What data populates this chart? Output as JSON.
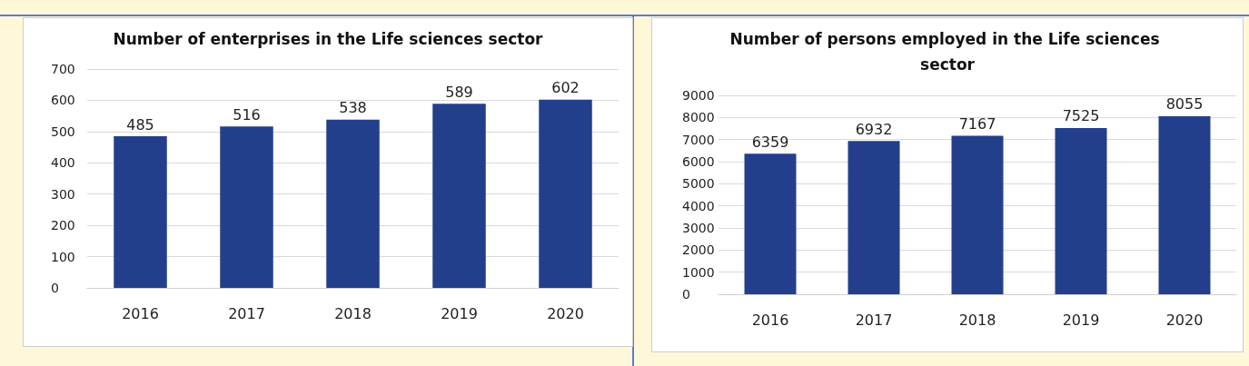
{
  "chart_data": [
    {
      "type": "bar",
      "title": "Number of enterprises in the Life sciences sector",
      "categories": [
        "2016",
        "2017",
        "2018",
        "2019",
        "2020"
      ],
      "values": [
        485,
        516,
        538,
        589,
        602
      ],
      "color": "#233f8c",
      "ylim": [
        0,
        700
      ],
      "yticks": [
        0,
        100,
        200,
        300,
        400,
        500,
        600,
        700
      ],
      "grid": "y",
      "data_labels": true
    },
    {
      "type": "bar",
      "title": "Number of persons employed in the Life sciences sector",
      "categories": [
        "2016",
        "2017",
        "2018",
        "2019",
        "2020"
      ],
      "values": [
        6359,
        6932,
        7167,
        7525,
        8055
      ],
      "color": "#233f8c",
      "ylim": [
        0,
        9000
      ],
      "yticks": [
        0,
        1000,
        2000,
        3000,
        4000,
        5000,
        6000,
        7000,
        8000,
        9000
      ],
      "grid": "y",
      "data_labels": true
    }
  ]
}
